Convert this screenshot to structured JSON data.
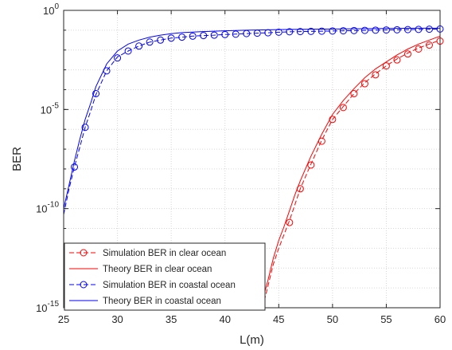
{
  "chart_data": {
    "type": "line",
    "xlabel": "L(m)",
    "ylabel": "BER",
    "xlim": [
      25,
      60
    ],
    "ylim_log10": [
      -15,
      0
    ],
    "y_scale": "log",
    "grid": true,
    "legend_position": "bottom-left",
    "x_ticks": [
      {
        "value": 25,
        "label": "25"
      },
      {
        "value": 30,
        "label": "30"
      },
      {
        "value": 35,
        "label": "35"
      },
      {
        "value": 40,
        "label": "40"
      },
      {
        "value": 45,
        "label": "45"
      },
      {
        "value": 50,
        "label": "50"
      },
      {
        "value": 55,
        "label": "55"
      },
      {
        "value": 60,
        "label": "60"
      }
    ],
    "y_ticks": [
      {
        "log10": 0,
        "base": "10",
        "exp": "0"
      },
      {
        "log10": -5,
        "base": "10",
        "exp": "-5"
      },
      {
        "log10": -10,
        "base": "10",
        "exp": "-10"
      },
      {
        "log10": -15,
        "base": "10",
        "exp": "-15"
      }
    ],
    "series": [
      {
        "name": "Simulation BER in clear ocean",
        "color": "#ff0000",
        "style": "dashed",
        "marker": "circle",
        "x": [
          43.5,
          44,
          44.5,
          45,
          45.5,
          46,
          46.5,
          47,
          48,
          49,
          50,
          51,
          52,
          53,
          54,
          55,
          56,
          57,
          58,
          59,
          60
        ],
        "y_log10": [
          -15.0,
          -13.9,
          -12.8,
          -12.0,
          -11.3,
          -10.6,
          -9.8,
          -9.0,
          -7.75,
          -6.55,
          -5.5,
          -4.85,
          -4.2,
          -3.65,
          -3.2,
          -2.8,
          -2.45,
          -2.15,
          -1.9,
          -1.7,
          -1.5
        ],
        "marker_x": [
          46,
          47,
          48,
          49,
          50,
          51,
          52,
          53,
          54,
          55,
          56,
          57,
          58,
          59,
          60
        ],
        "marker_y_log10": [
          -10.7,
          -9.0,
          -7.8,
          -6.6,
          -5.5,
          -4.9,
          -4.2,
          -3.7,
          -3.25,
          -2.8,
          -2.5,
          -2.2,
          -1.95,
          -1.75,
          -1.55
        ]
      },
      {
        "name": "Theory BER in clear ocean",
        "color": "#ff0000",
        "style": "solid",
        "marker": "none",
        "x": [
          43.3,
          44,
          44.5,
          45,
          45.5,
          46,
          46.5,
          47,
          48,
          49,
          50,
          51,
          52,
          53,
          54,
          55,
          56,
          57,
          58,
          59,
          60
        ],
        "y_log10": [
          -15.0,
          -13.6,
          -12.5,
          -11.6,
          -10.9,
          -10.1,
          -9.3,
          -8.6,
          -7.35,
          -6.25,
          -5.25,
          -4.55,
          -3.95,
          -3.4,
          -2.95,
          -2.6,
          -2.25,
          -1.95,
          -1.7,
          -1.5,
          -1.3
        ]
      },
      {
        "name": "Simulation BER in coastal ocean",
        "color": "#0000ff",
        "style": "dashed",
        "marker": "circle",
        "x": [
          25,
          25.5,
          26,
          26.5,
          27,
          27.5,
          28,
          29,
          30,
          31,
          32,
          33,
          34,
          35,
          36,
          37,
          38,
          39,
          40,
          41,
          42,
          43,
          44,
          45,
          46,
          47,
          48,
          49,
          50,
          51,
          52,
          53,
          54,
          55,
          56,
          57,
          58,
          59,
          60
        ],
        "y_log10": [
          -10.3,
          -9.0,
          -7.9,
          -6.9,
          -5.9,
          -5.1,
          -4.25,
          -3.05,
          -2.35,
          -2.05,
          -1.8,
          -1.6,
          -1.5,
          -1.4,
          -1.35,
          -1.3,
          -1.27,
          -1.25,
          -1.22,
          -1.2,
          -1.17,
          -1.15,
          -1.13,
          -1.1,
          -1.08,
          -1.07,
          -1.06,
          -1.05,
          -1.04,
          -1.03,
          -1.02,
          -1.01,
          -1.0,
          -0.99,
          -0.98,
          -0.97,
          -0.96,
          -0.95,
          -0.94
        ],
        "marker_x": [
          26,
          27,
          28,
          29,
          30,
          31,
          32,
          33,
          34,
          35,
          36,
          37,
          38,
          39,
          40,
          41,
          42,
          43,
          44,
          45,
          46,
          47,
          48,
          49,
          50,
          51,
          52,
          53,
          54,
          55,
          56,
          57,
          58,
          59,
          60
        ],
        "marker_y_log10": [
          -7.9,
          -5.9,
          -4.2,
          -3.05,
          -2.4,
          -2.05,
          -1.8,
          -1.6,
          -1.5,
          -1.4,
          -1.35,
          -1.3,
          -1.27,
          -1.25,
          -1.22,
          -1.2,
          -1.17,
          -1.15,
          -1.13,
          -1.1,
          -1.08,
          -1.07,
          -1.06,
          -1.05,
          -1.04,
          -1.03,
          -1.02,
          -1.01,
          -1.0,
          -0.99,
          -0.98,
          -0.97,
          -0.96,
          -0.95,
          -0.94
        ]
      },
      {
        "name": "Theory BER in coastal ocean",
        "color": "#0000ff",
        "style": "solid",
        "marker": "none",
        "x": [
          25,
          25.5,
          26,
          26.5,
          27,
          27.5,
          28,
          29,
          30,
          31,
          32,
          33,
          34,
          35,
          36,
          38,
          40,
          42,
          44,
          46,
          48,
          50,
          52,
          54,
          56,
          58,
          60
        ],
        "y_log10": [
          -10.0,
          -8.8,
          -7.6,
          -6.5,
          -5.5,
          -4.7,
          -3.85,
          -2.7,
          -2.05,
          -1.7,
          -1.5,
          -1.35,
          -1.25,
          -1.18,
          -1.12,
          -1.07,
          -1.03,
          -1.0,
          -0.98,
          -0.96,
          -0.95,
          -0.94,
          -0.93,
          -0.92,
          -0.91,
          -0.9,
          -0.9
        ]
      }
    ]
  }
}
